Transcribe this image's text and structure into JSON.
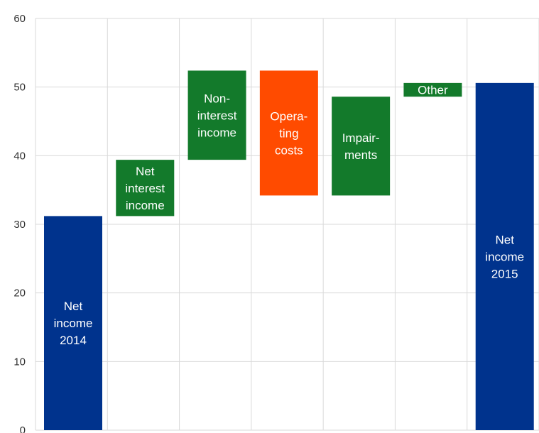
{
  "chart_data": {
    "type": "bar",
    "subtype": "waterfall",
    "title": "",
    "xlabel": "",
    "ylabel": "",
    "ylim": [
      0,
      60
    ],
    "yticks": [
      0,
      10,
      20,
      30,
      40,
      50,
      60
    ],
    "grid": true,
    "bars": [
      {
        "label": [
          "Net",
          "income",
          "2014"
        ],
        "low": 0,
        "high": 31.2,
        "color": "#00338d"
      },
      {
        "label": [
          "Net",
          "interest",
          "income"
        ],
        "low": 31.2,
        "high": 39.4,
        "color": "#137a2b"
      },
      {
        "label": [
          "Non-",
          "interest",
          "income"
        ],
        "low": 39.4,
        "high": 52.4,
        "color": "#137a2b"
      },
      {
        "label": [
          "Opera-",
          "ting",
          "costs"
        ],
        "low": 34.2,
        "high": 52.4,
        "color": "#ff4b00"
      },
      {
        "label": [
          "Impair-",
          "ments"
        ],
        "low": 34.2,
        "high": 48.6,
        "color": "#137a2b"
      },
      {
        "label": [
          "Other"
        ],
        "low": 48.6,
        "high": 50.6,
        "color": "#137a2b"
      },
      {
        "label": [
          "Net",
          "income",
          "2015"
        ],
        "low": 0,
        "high": 50.6,
        "color": "#00338d"
      }
    ]
  }
}
